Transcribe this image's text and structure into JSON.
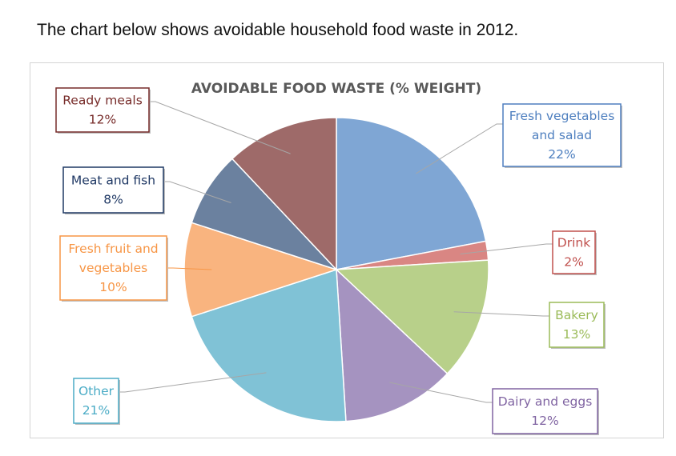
{
  "caption": "The chart below shows avoidable household food waste in 2012.",
  "chart_data": {
    "type": "pie",
    "title": "AVOIDABLE FOOD WASTE (% WEIGHT)",
    "slices": [
      {
        "key": "fresh-vegetables-and-salad",
        "lines": [
          "Fresh vegetables",
          "and salad"
        ],
        "value_text": "22%",
        "value": 22,
        "color": "#7FA6D4",
        "border": "#4E7FBF"
      },
      {
        "key": "drink",
        "lines": [
          "Drink"
        ],
        "value_text": "2%",
        "value": 2,
        "color": "#D98683",
        "border": "#C0504D"
      },
      {
        "key": "bakery",
        "lines": [
          "Bakery"
        ],
        "value_text": "13%",
        "value": 13,
        "color": "#B8D08A",
        "border": "#9BBB59"
      },
      {
        "key": "dairy-and-eggs",
        "lines": [
          "Dairy and eggs"
        ],
        "value_text": "12%",
        "value": 12,
        "color": "#A593C0",
        "border": "#8064A2"
      },
      {
        "key": "other",
        "lines": [
          "Other"
        ],
        "value_text": "21%",
        "value": 21,
        "color": "#80C2D6",
        "border": "#4BACC6"
      },
      {
        "key": "fresh-fruit-and-vegetables",
        "lines": [
          "Fresh fruit and",
          "vegetables"
        ],
        "value_text": "10%",
        "value": 10,
        "color": "#F9B47F",
        "border": "#F79646"
      },
      {
        "key": "meat-and-fish",
        "lines": [
          "Meat and fish"
        ],
        "value_text": "8%",
        "value": 8,
        "color": "#6B819F",
        "border": "#1F3864"
      },
      {
        "key": "ready-meals",
        "lines": [
          "Ready meals"
        ],
        "value_text": "12%",
        "value": 12,
        "color": "#9E6A69",
        "border": "#772C2A"
      }
    ]
  }
}
